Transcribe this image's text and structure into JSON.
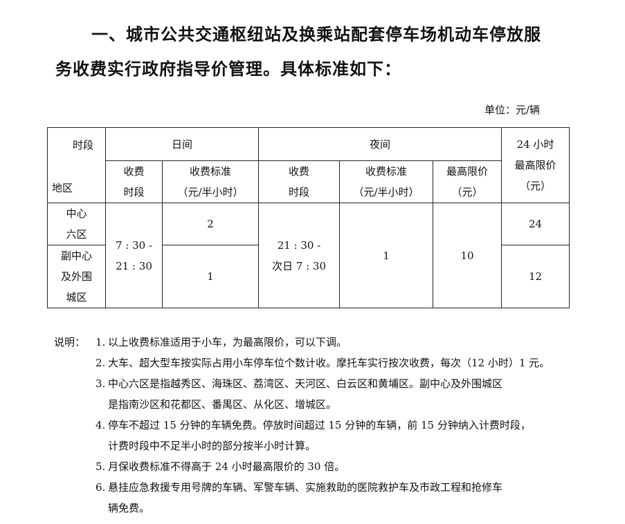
{
  "title": {
    "line1": "一、城市公共交通枢纽站及换乘站配套停车场机动车停放服",
    "line2": "务收费实行政府指导价管理。具体标准如下："
  },
  "unit": "单位：元/辆",
  "table": {
    "corner_top": "时段",
    "corner_bottom": "地区",
    "day": "日间",
    "night": "夜间",
    "max24_line1": "24 小时",
    "max24_line2": "最高限价",
    "max24_line3": "（元）",
    "day_period_1": "收费",
    "day_period_2": "时段",
    "day_rate_1": "收费标准",
    "day_rate_2": "（元/半小时）",
    "night_period_1": "收费",
    "night_period_2": "时段",
    "night_rate_1": "收费标准",
    "night_rate_2": "（元/半小时）",
    "night_max_1": "最高限价",
    "night_max_2": "（元）",
    "rows": [
      {
        "region_1": "中心",
        "region_2": "六区",
        "day_rate": "2",
        "max24": "24"
      },
      {
        "region_1": "副中心",
        "region_2": "及外围",
        "region_3": "城区",
        "day_rate": "1",
        "max24": "12"
      }
    ],
    "day_time_1": "7 : 30 -",
    "day_time_2": "21 : 30",
    "night_time_1": "21 : 30 -",
    "night_time_2": "次日 7 : 30",
    "night_rate": "1",
    "night_max": "10"
  },
  "notes": {
    "label": "说明：",
    "items": [
      {
        "num": "1.",
        "lines": [
          "以上收费标准适用于小车，为最高限价，可以下调。"
        ]
      },
      {
        "num": "2.",
        "lines": [
          "大车、超大型车按实际占用小车停车位个数计收。摩托车实行按次收费，每次（12 小时）1 元。"
        ]
      },
      {
        "num": "3.",
        "lines": [
          "中心六区是指越秀区、海珠区、荔湾区、天河区、白云区和黄埔区。副中心及外围城区",
          "是指南沙区和花都区、番禺区、从化区、增城区。"
        ]
      },
      {
        "num": "4.",
        "lines": [
          "停车不超过 15 分钟的车辆免费。停放时间超过 15 分钟的车辆，前 15 分钟纳入计费时段，",
          "计费时段中不足半小时的部分按半小时计算。"
        ]
      },
      {
        "num": "5.",
        "lines": [
          "月保收费标准不得高于 24 小时最高限价的 30 倍。"
        ]
      },
      {
        "num": "6.",
        "lines": [
          "悬挂应急救援专用号牌的车辆、军警车辆、实施救助的医院救护车及市政工程和抢修车",
          "辆免费。"
        ]
      }
    ]
  }
}
